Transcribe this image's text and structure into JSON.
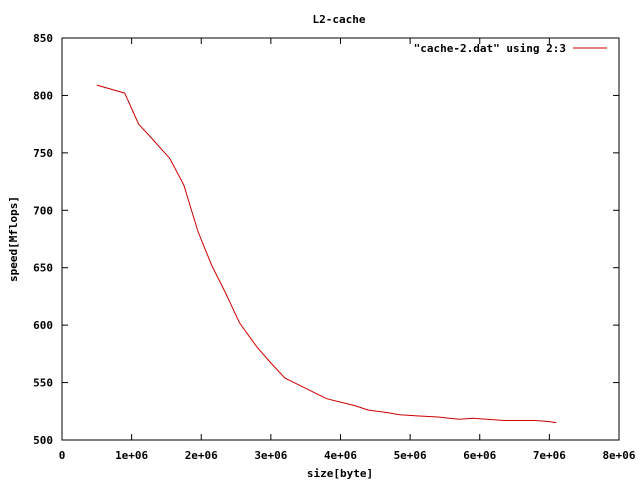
{
  "chart_data": {
    "type": "line",
    "title": "L2-cache",
    "xlabel": "size[byte]",
    "ylabel": "speed[Mflops]",
    "xlim": [
      0,
      8000000
    ],
    "ylim": [
      500,
      850
    ],
    "x_ticks": [
      0,
      1000000,
      2000000,
      3000000,
      4000000,
      5000000,
      6000000,
      7000000,
      8000000
    ],
    "x_tick_labels": [
      "0",
      "1e+06",
      "2e+06",
      "3e+06",
      "4e+06",
      "5e+06",
      "6e+06",
      "7e+06",
      "8e+06"
    ],
    "y_ticks": [
      500,
      550,
      600,
      650,
      700,
      750,
      800,
      850
    ],
    "y_tick_labels": [
      "500",
      "550",
      "600",
      "650",
      "700",
      "750",
      "800",
      "850"
    ],
    "legend_position": "top-right",
    "grid": false,
    "series": [
      {
        "name": "\"cache-2.dat\" using 2:3",
        "color": "#cc0000",
        "x": [
          500000,
          900000,
          1100000,
          1300000,
          1550000,
          1750000,
          1950000,
          2150000,
          2350000,
          2550000,
          2800000,
          3000000,
          3200000,
          3500000,
          3800000,
          4000000,
          4200000,
          4400000,
          4650000,
          4850000,
          5100000,
          5400000,
          5700000,
          5900000,
          6100000,
          6350000,
          6600000,
          6800000,
          7000000,
          7100000
        ],
        "y": [
          809,
          802,
          775,
          762,
          745,
          722,
          682,
          652,
          628,
          602,
          581,
          567,
          554,
          545,
          536,
          533,
          530,
          526,
          524,
          522,
          521,
          520,
          518,
          519,
          518,
          517,
          517,
          517,
          516,
          515
        ]
      }
    ]
  }
}
